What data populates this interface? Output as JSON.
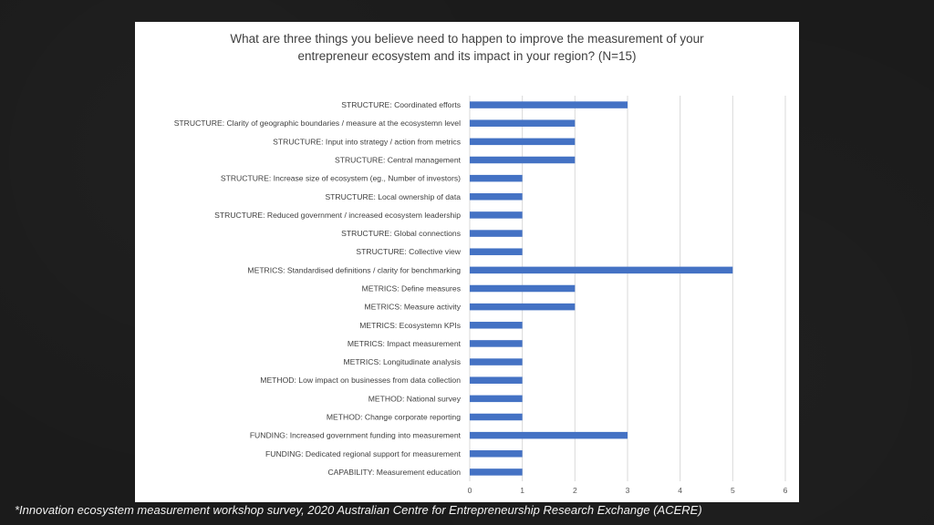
{
  "footnote": "*Innovation ecosystem measurement workshop survey, 2020 Australian Centre for Entrepreneurship Research Exchange (ACERE)",
  "colors": {
    "bar": "#4472c4",
    "grid": "#d9d9d9",
    "background": "#1b1b1b",
    "panel": "#ffffff"
  },
  "chart_data": {
    "type": "bar",
    "orientation": "horizontal",
    "title": [
      "What are three things you believe need to happen to improve the measurement of your",
      "entrepreneur ecosystem and its impact in your region? (N=15)"
    ],
    "categories": [
      "STRUCTURE: Coordinated efforts",
      "STRUCTURE: Clarity of geographic boundaries / measure at the ecosystemn level",
      "STRUCTURE: Input into strategy / action from metrics",
      "STRUCTURE: Central management",
      "STRUCTURE: Increase size of ecosystem (eg., Number of investors)",
      "STRUCTURE: Local ownership of data",
      "STRUCTURE: Reduced government / increased ecosystem leadership",
      "STRUCTURE: Global connections",
      "STRUCTURE: Collective view",
      "METRICS: Standardised definitions / clarity for benchmarking",
      "METRICS: Define measures",
      "METRICS: Measure activity",
      "METRICS: Ecosystemn KPIs",
      "METRICS: Impact measurement",
      "METRICS: Longitudinate analysis",
      "METHOD: Low impact on businesses from data collection",
      "METHOD: National survey",
      "METHOD: Change corporate reporting",
      "FUNDING: Increased government funding into measurement",
      "FUNDING: Dedicated regional support for measurement",
      "CAPABILITY: Measurement education"
    ],
    "values": [
      3,
      2,
      2,
      2,
      1,
      1,
      1,
      1,
      1,
      5,
      2,
      2,
      1,
      1,
      1,
      1,
      1,
      1,
      3,
      1,
      1
    ],
    "xlim": [
      0,
      6
    ],
    "xticks": [
      "0",
      "1",
      "2",
      "3",
      "4",
      "5",
      "6"
    ],
    "grid": true,
    "legend": "none"
  }
}
